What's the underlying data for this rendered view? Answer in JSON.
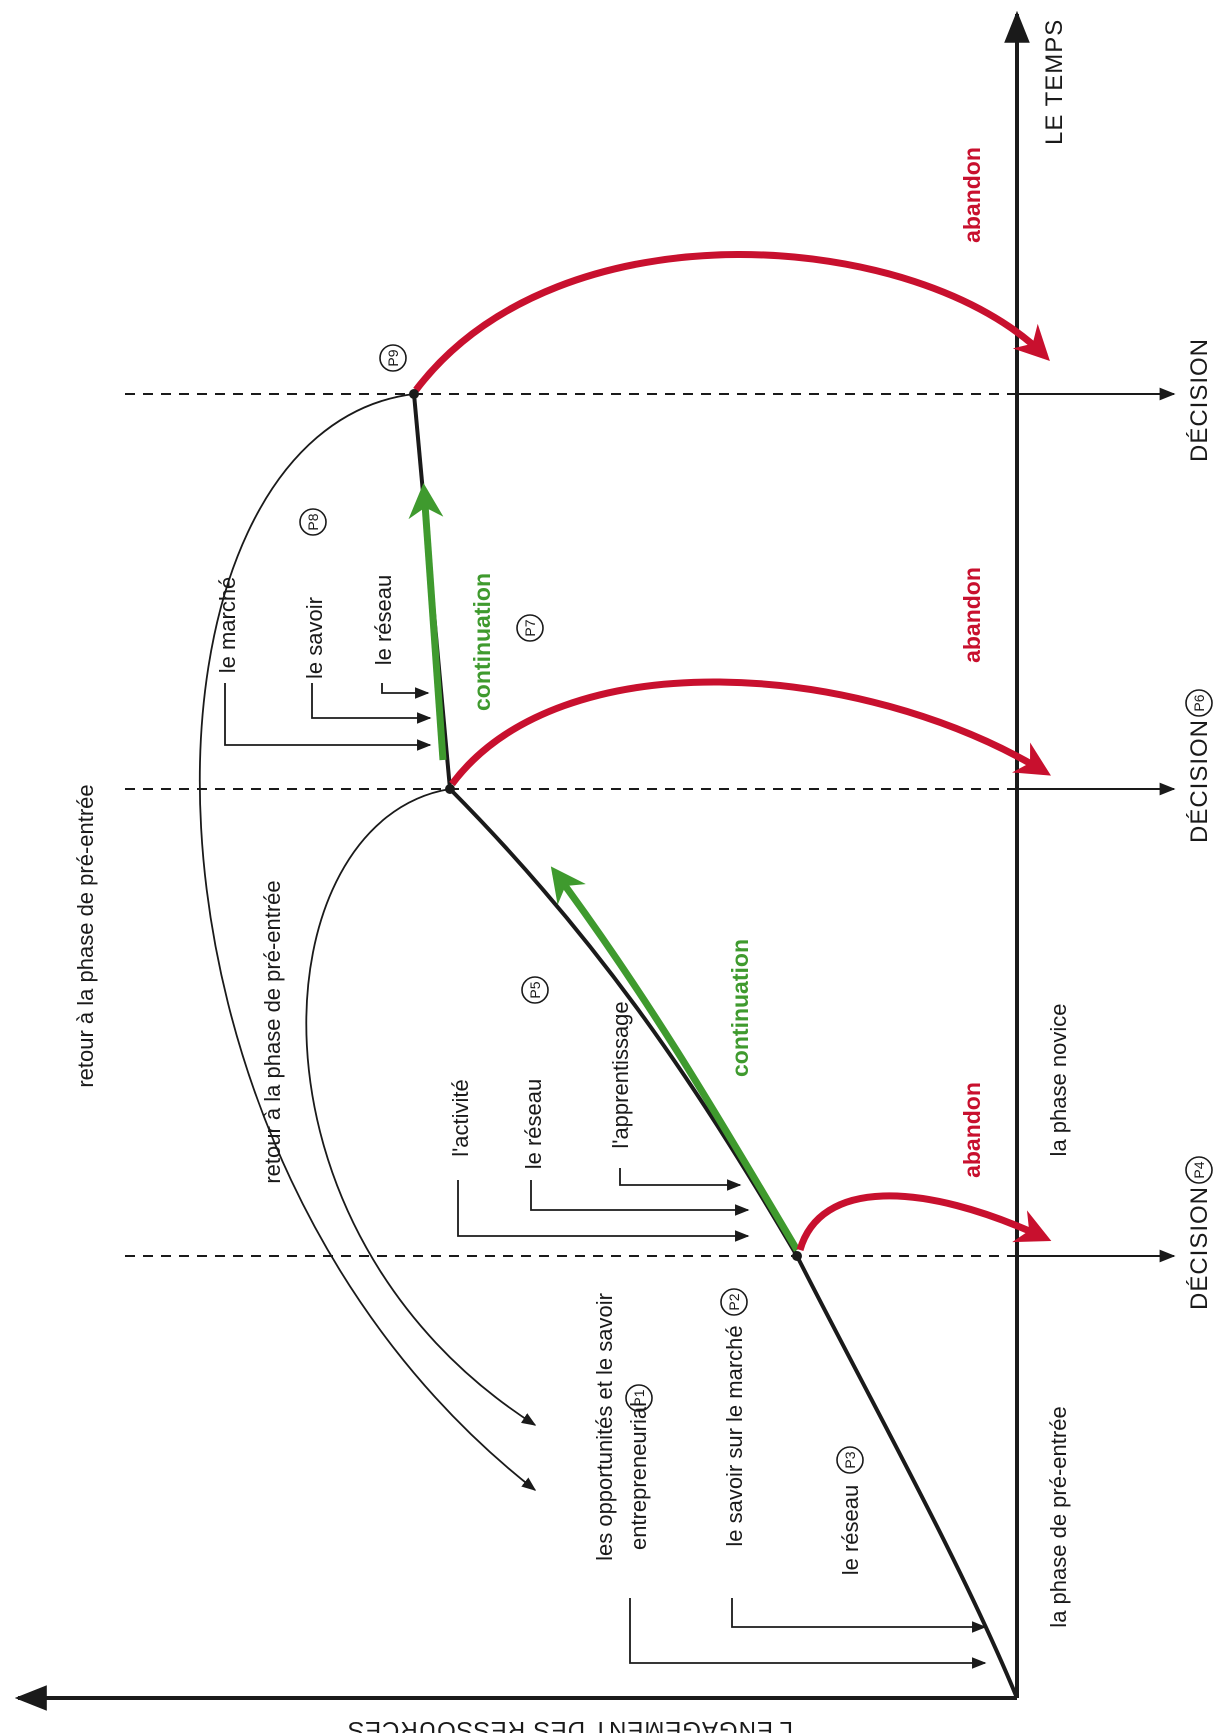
{
  "axes": {
    "time": "LE TEMPS",
    "resources": "L'ENGAGEMENT DES RESSOURCES"
  },
  "decisions": {
    "d1": "DÉCISION",
    "d1_tag": "P4",
    "d2": "DÉCISION",
    "d2_tag": "P6",
    "d3": "DÉCISION"
  },
  "phases": {
    "pre_entry": "la phase de pré-entrée",
    "novice": "la phase novice"
  },
  "outcomes": {
    "abandon": "abandon",
    "continuation": "continuation"
  },
  "returns": {
    "outer": "retour à la phase de pré-entrée",
    "inner": "retour à la phase de pré-entrée"
  },
  "stage1_inputs": {
    "line1": "les opportunités et le savoir",
    "line2": "entrepreneurial",
    "line2_tag": "P1",
    "market": "le savoir sur le marché",
    "market_tag": "P2",
    "network": "le réseau",
    "network_tag": "P3"
  },
  "stage2_inputs": {
    "activity": "l'activité",
    "network": "le réseau",
    "learning": "l'apprentissage",
    "tag": "P5"
  },
  "stage3_inputs": {
    "market": "le marché",
    "knowledge": "le savoir",
    "network": "le réseau",
    "tag": "P8",
    "continuation_tag": "P7"
  },
  "end_tag": "P9",
  "colors": {
    "red": "#c8102e",
    "green": "#3f9a2e",
    "black": "#1a1a1a"
  }
}
